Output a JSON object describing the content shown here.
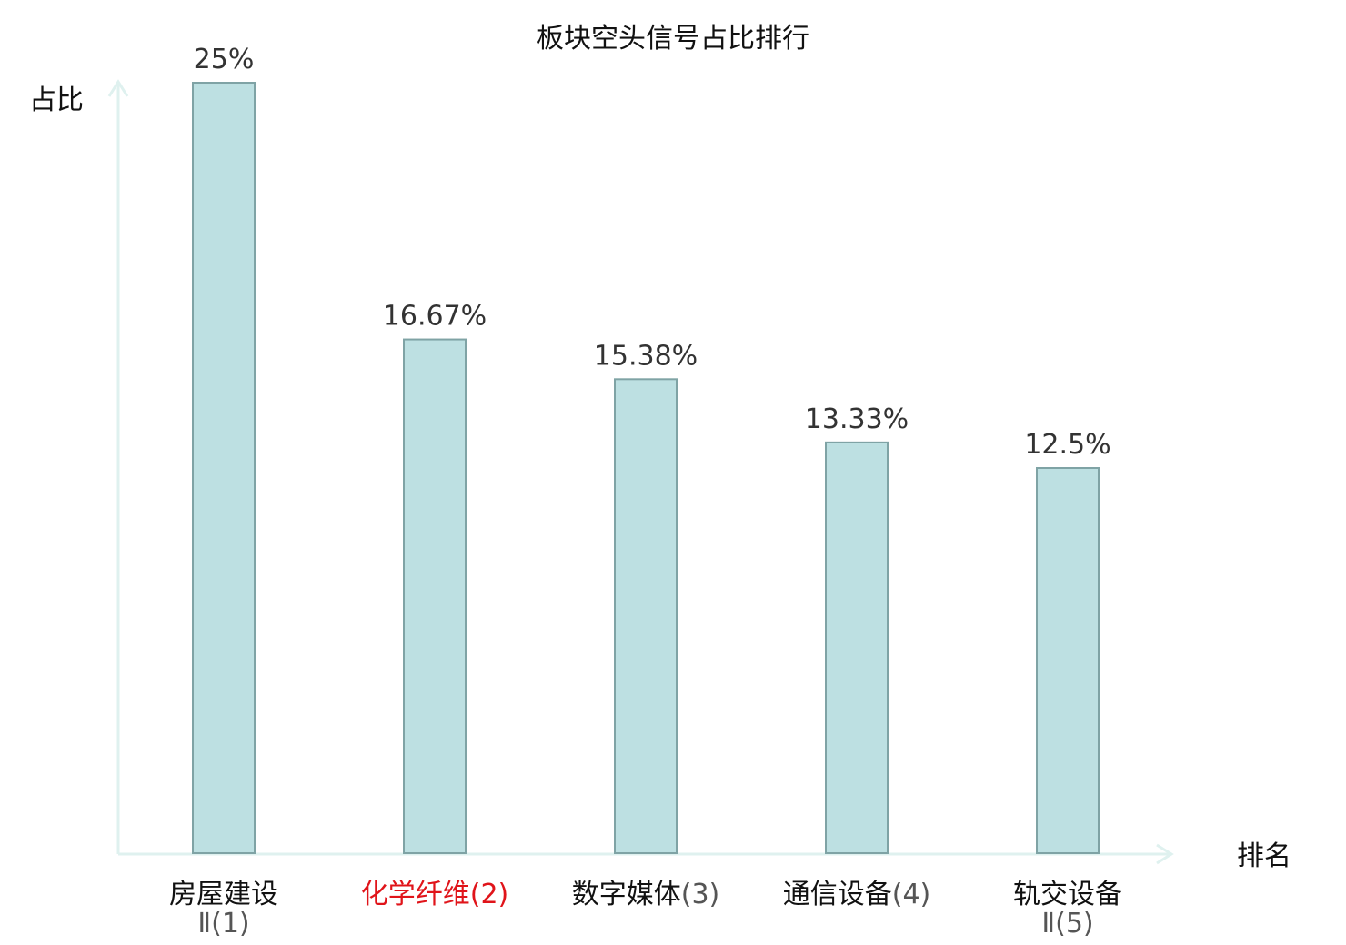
{
  "chart_data": {
    "type": "bar",
    "title": "板块空头信号占比排行",
    "ylabel": "占比",
    "xlabel": "排名",
    "ylim": [
      0,
      25
    ],
    "grid": false,
    "categories": [
      {
        "name": "房屋建设",
        "rank": "Ⅱ(1)",
        "highlight": false
      },
      {
        "name": "化学纤维",
        "rank": "(2)",
        "highlight": true
      },
      {
        "name": "数字媒体",
        "rank": "(3)",
        "highlight": false
      },
      {
        "name": "通信设备",
        "rank": "(4)",
        "highlight": false
      },
      {
        "name": "轨交设备",
        "rank": "Ⅱ(5)",
        "highlight": false
      }
    ],
    "values": [
      25,
      16.67,
      15.38,
      13.33,
      12.5
    ],
    "value_labels": [
      "25%",
      "16.67%",
      "15.38%",
      "13.33%",
      "12.5%"
    ]
  },
  "colors": {
    "bar_fill": "#bde0e2",
    "bar_stroke": "#7fa3a5",
    "axis": "#dff1ef",
    "highlight_text": "#e0141a",
    "text": "#111111"
  }
}
